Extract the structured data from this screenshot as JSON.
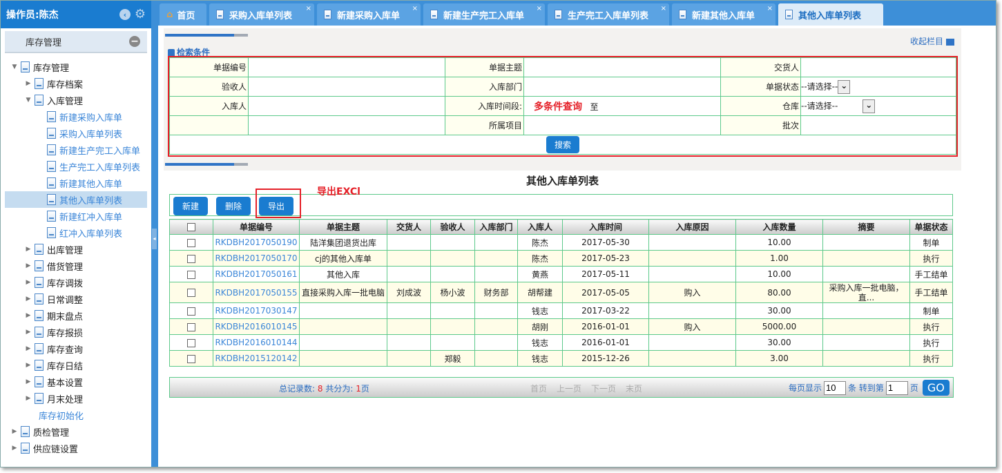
{
  "sidebar": {
    "operator": "操作员:陈杰",
    "panel_title": "库存管理",
    "tree": [
      {
        "label": "库存管理",
        "level": 0,
        "state": "open"
      },
      {
        "label": "库存档案",
        "level": 1,
        "state": "closed"
      },
      {
        "label": "入库管理",
        "level": 1,
        "state": "open"
      },
      {
        "label": "新建采购入库单",
        "level": 2,
        "state": "leaf"
      },
      {
        "label": "采购入库单列表",
        "level": 2,
        "state": "leaf"
      },
      {
        "label": "新建生产完工入库单",
        "level": 2,
        "state": "leaf"
      },
      {
        "label": "生产完工入库单列表",
        "level": 2,
        "state": "leaf"
      },
      {
        "label": "新建其他入库单",
        "level": 2,
        "state": "leaf"
      },
      {
        "label": "其他入库单列表",
        "level": 2,
        "state": "leaf",
        "selected": true
      },
      {
        "label": "新建红冲入库单",
        "level": 2,
        "state": "leaf"
      },
      {
        "label": "红冲入库单列表",
        "level": 2,
        "state": "leaf"
      },
      {
        "label": "出库管理",
        "level": 1,
        "state": "closed"
      },
      {
        "label": "借货管理",
        "level": 1,
        "state": "closed"
      },
      {
        "label": "库存调拨",
        "level": 1,
        "state": "closed"
      },
      {
        "label": "日常调整",
        "level": 1,
        "state": "closed"
      },
      {
        "label": "期末盘点",
        "level": 1,
        "state": "closed"
      },
      {
        "label": "库存报损",
        "level": 1,
        "state": "closed"
      },
      {
        "label": "库存查询",
        "level": 1,
        "state": "closed"
      },
      {
        "label": "库存日结",
        "level": 1,
        "state": "closed"
      },
      {
        "label": "基本设置",
        "level": 1,
        "state": "closed"
      },
      {
        "label": "月末处理",
        "level": 1,
        "state": "closed"
      },
      {
        "label": "库存初始化",
        "level": 1,
        "state": "leafnodoc"
      },
      {
        "label": "质检管理",
        "level": 0,
        "state": "closed"
      },
      {
        "label": "供应链设置",
        "level": 0,
        "state": "closed"
      }
    ]
  },
  "tabs": [
    {
      "label": "首页",
      "icon": "home-icon",
      "closable": false
    },
    {
      "label": "采购入库单列表",
      "closable": true
    },
    {
      "label": "新建采购入库单",
      "closable": true
    },
    {
      "label": "新建生产完工入库单",
      "closable": true
    },
    {
      "label": "生产完工入库单列表",
      "closable": true
    },
    {
      "label": "新建其他入库单",
      "closable": true
    },
    {
      "label": "其他入库单列表",
      "closable": false,
      "active": true
    }
  ],
  "search": {
    "title": "检索条件",
    "collapse": "收起栏目",
    "labels": {
      "doc_no": "单据编号",
      "subject": "单据主题",
      "deliverer": "交货人",
      "receiver": "验收人",
      "dept": "入库部门",
      "status": "单据状态",
      "stocker": "入库人",
      "period": "入库时间段:",
      "warehouse": "仓库",
      "project": "所属项目",
      "batch": "批次"
    },
    "period_to": "至",
    "select_placeholder": "--请选择--",
    "annotation": "多条件查询",
    "search_button": "搜索"
  },
  "list": {
    "title": "其他入库单列表",
    "buttons": {
      "new": "新建",
      "delete": "删除",
      "export": "导出"
    },
    "export_annotation": "导出EXCl",
    "columns": [
      "单据编号",
      "单据主题",
      "交货人",
      "验收人",
      "入库部门",
      "入库人",
      "入库时间",
      "入库原因",
      "入库数量",
      "摘要",
      "单据状态"
    ],
    "rows": [
      [
        "RKDBH2017050190",
        "陆洋集团退货出库",
        "",
        "",
        "",
        "陈杰",
        "2017-05-30",
        "",
        "10.00",
        "",
        "制单"
      ],
      [
        "RKDBH2017050170",
        "cj的其他入库单",
        "",
        "",
        "",
        "陈杰",
        "2017-05-23",
        "",
        "1.00",
        "",
        "执行"
      ],
      [
        "RKDBH2017050161",
        "其他入库",
        "",
        "",
        "",
        "黄燕",
        "2017-05-11",
        "",
        "10.00",
        "",
        "手工结单"
      ],
      [
        "RKDBH2017050155",
        "直接采购入库一批电脑",
        "刘成波",
        "杨小波",
        "财务部",
        "胡帮建",
        "2017-05-05",
        "购入",
        "80.00",
        "采购入库一批电脑，直...",
        "手工结单"
      ],
      [
        "RKDBH2017030147",
        "",
        "",
        "",
        "",
        "钱志",
        "2017-03-22",
        "",
        "30.00",
        "",
        "制单"
      ],
      [
        "RKDBH2016010145",
        "",
        "",
        "",
        "",
        "胡刚",
        "2016-01-01",
        "购入",
        "5000.00",
        "",
        "执行"
      ],
      [
        "RKDBH2016010144",
        "",
        "",
        "",
        "",
        "钱志",
        "2016-01-01",
        "",
        "30.00",
        "",
        "执行"
      ],
      [
        "RKDBH2015120142",
        "",
        "",
        "郑毅",
        "",
        "钱志",
        "2015-12-26",
        "",
        "3.00",
        "",
        "执行"
      ]
    ]
  },
  "pager": {
    "total_label": "总记录数:",
    "total": "8",
    "pages_label": "共分为:",
    "pages": "1",
    "pages_unit": "页",
    "first": "首页",
    "prev": "上一页",
    "next": "下一页",
    "last": "末页",
    "per_page_label": "每页显示",
    "per_page": "10",
    "goto_label": "条 转到第",
    "goto_page": "1",
    "page_unit": "页",
    "go": "GO"
  },
  "colors": {
    "brand": "#1a7cd0",
    "annotation": "#e52028",
    "grid_border": "#5cc98a"
  }
}
